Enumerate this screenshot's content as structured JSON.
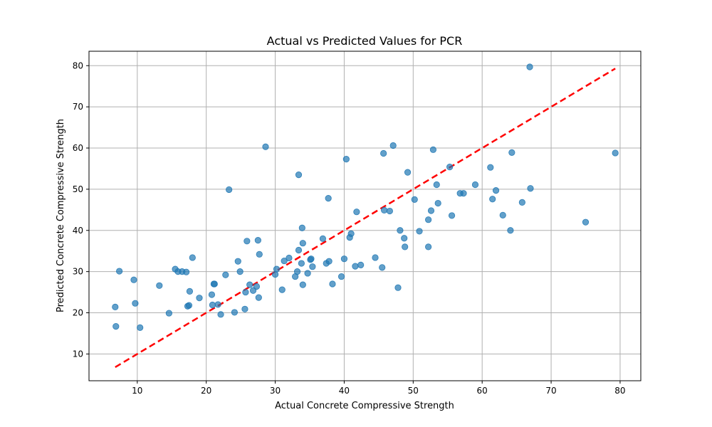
{
  "chart_data": {
    "type": "scatter",
    "title": "Actual vs Predicted Values for PCR",
    "xlabel": "Actual Concrete Compressive Strength",
    "ylabel": "Predicted Concrete Compressive Strength",
    "xlim": [
      3.0,
      83.0
    ],
    "ylim": [
      3.5,
      83.5
    ],
    "xticks": [
      10,
      20,
      30,
      40,
      50,
      60,
      70,
      80
    ],
    "yticks": [
      10,
      20,
      30,
      40,
      50,
      60,
      70,
      80
    ],
    "grid": true,
    "colors": {
      "points": "#1f77b4",
      "reference": "#ff0000"
    },
    "reference_line": {
      "x": [
        6.8,
        79.3
      ],
      "y": [
        6.8,
        79.3
      ],
      "style": "dashed"
    },
    "points": [
      [
        6.8,
        21.4
      ],
      [
        6.9,
        16.7
      ],
      [
        7.4,
        30.1
      ],
      [
        9.5,
        28.0
      ],
      [
        9.7,
        22.3
      ],
      [
        10.4,
        16.4
      ],
      [
        13.2,
        26.6
      ],
      [
        14.6,
        19.9
      ],
      [
        15.5,
        30.6
      ],
      [
        15.9,
        30.0
      ],
      [
        16.5,
        30.0
      ],
      [
        17.1,
        29.9
      ],
      [
        17.3,
        21.6
      ],
      [
        17.5,
        21.8
      ],
      [
        17.6,
        25.2
      ],
      [
        18.0,
        33.4
      ],
      [
        19.0,
        23.6
      ],
      [
        20.8,
        24.4
      ],
      [
        20.9,
        21.9
      ],
      [
        21.1,
        27.0
      ],
      [
        21.2,
        27.0
      ],
      [
        21.7,
        22.0
      ],
      [
        22.1,
        19.6
      ],
      [
        22.8,
        29.2
      ],
      [
        23.3,
        49.9
      ],
      [
        24.1,
        20.1
      ],
      [
        24.6,
        32.5
      ],
      [
        24.9,
        30.0
      ],
      [
        25.6,
        20.9
      ],
      [
        25.7,
        25.0
      ],
      [
        25.9,
        37.4
      ],
      [
        26.3,
        26.8
      ],
      [
        26.8,
        25.4
      ],
      [
        27.3,
        26.4
      ],
      [
        27.5,
        37.6
      ],
      [
        27.6,
        23.7
      ],
      [
        27.7,
        34.2
      ],
      [
        28.6,
        60.3
      ],
      [
        30.0,
        29.3
      ],
      [
        30.2,
        30.6
      ],
      [
        31.0,
        25.6
      ],
      [
        31.3,
        32.6
      ],
      [
        32.0,
        33.3
      ],
      [
        32.9,
        28.8
      ],
      [
        33.2,
        30.0
      ],
      [
        33.4,
        35.2
      ],
      [
        33.4,
        53.5
      ],
      [
        33.8,
        32.0
      ],
      [
        33.9,
        40.6
      ],
      [
        34.0,
        26.8
      ],
      [
        34.0,
        36.9
      ],
      [
        34.7,
        29.6
      ],
      [
        35.1,
        32.9
      ],
      [
        35.2,
        33.1
      ],
      [
        35.4,
        31.2
      ],
      [
        36.9,
        38.0
      ],
      [
        37.4,
        32.0
      ],
      [
        37.7,
        47.8
      ],
      [
        37.8,
        32.5
      ],
      [
        38.3,
        27.0
      ],
      [
        39.6,
        28.8
      ],
      [
        40.0,
        33.1
      ],
      [
        40.3,
        57.3
      ],
      [
        40.8,
        38.3
      ],
      [
        41.0,
        39.2
      ],
      [
        41.6,
        31.3
      ],
      [
        41.8,
        44.5
      ],
      [
        42.4,
        31.6
      ],
      [
        44.5,
        33.4
      ],
      [
        45.5,
        31.0
      ],
      [
        45.7,
        58.7
      ],
      [
        45.8,
        44.9
      ],
      [
        46.6,
        44.7
      ],
      [
        47.1,
        60.6
      ],
      [
        47.8,
        26.1
      ],
      [
        48.1,
        40.0
      ],
      [
        48.7,
        38.1
      ],
      [
        48.8,
        36.0
      ],
      [
        49.2,
        54.1
      ],
      [
        50.2,
        47.5
      ],
      [
        50.9,
        39.8
      ],
      [
        52.2,
        42.6
      ],
      [
        52.2,
        36.0
      ],
      [
        52.6,
        44.8
      ],
      [
        52.9,
        59.6
      ],
      [
        53.4,
        51.1
      ],
      [
        53.6,
        46.6
      ],
      [
        55.3,
        55.4
      ],
      [
        55.6,
        43.6
      ],
      [
        56.8,
        49.0
      ],
      [
        57.3,
        49.0
      ],
      [
        59.0,
        51.1
      ],
      [
        61.2,
        55.3
      ],
      [
        61.5,
        47.6
      ],
      [
        62.0,
        49.7
      ],
      [
        63.0,
        43.7
      ],
      [
        64.1,
        40.0
      ],
      [
        64.3,
        58.9
      ],
      [
        65.8,
        46.8
      ],
      [
        66.9,
        79.7
      ],
      [
        67.0,
        50.2
      ],
      [
        75.0,
        42.0
      ],
      [
        79.3,
        58.8
      ]
    ]
  }
}
